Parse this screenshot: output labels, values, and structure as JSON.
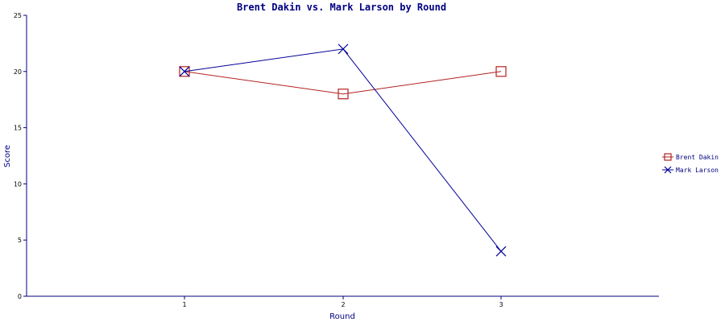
{
  "chart_data": {
    "type": "line",
    "title": "Brent Dakin vs. Mark Larson by Round",
    "xlabel": "Round",
    "ylabel": "Score",
    "categories": [
      "1",
      "2",
      "3"
    ],
    "ylim": [
      0,
      25
    ],
    "yticks": [
      "0",
      "5",
      "10",
      "15",
      "20",
      "25"
    ],
    "grid": false,
    "legend_position": "right",
    "series": [
      {
        "name": "Brent Dakin",
        "values": [
          20,
          18,
          20
        ],
        "color": "#b22222",
        "marker": "square"
      },
      {
        "name": "Mark Larson",
        "values": [
          20,
          22,
          4
        ],
        "color": "#000099",
        "marker": "x"
      }
    ]
  }
}
